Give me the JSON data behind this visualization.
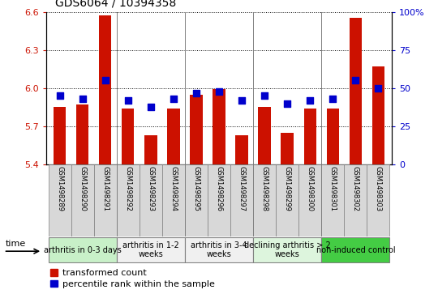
{
  "title": "GDS6064 / 10394358",
  "samples": [
    "GSM1498289",
    "GSM1498290",
    "GSM1498291",
    "GSM1498292",
    "GSM1498293",
    "GSM1498294",
    "GSM1498295",
    "GSM1498296",
    "GSM1498297",
    "GSM1498298",
    "GSM1498299",
    "GSM1498300",
    "GSM1498301",
    "GSM1498302",
    "GSM1498303"
  ],
  "red_values": [
    5.85,
    5.87,
    6.57,
    5.84,
    5.63,
    5.84,
    5.95,
    5.99,
    5.63,
    5.85,
    5.65,
    5.84,
    5.84,
    6.55,
    6.17
  ],
  "blue_pct": [
    45,
    43,
    55,
    42,
    38,
    43,
    47,
    48,
    42,
    45,
    40,
    42,
    43,
    55,
    50
  ],
  "ylim_left": [
    5.4,
    6.6
  ],
  "ylim_right": [
    0,
    100
  ],
  "yticks_left": [
    5.4,
    5.7,
    6.0,
    6.3,
    6.6
  ],
  "yticks_right": [
    0,
    25,
    50,
    75,
    100
  ],
  "groups": [
    {
      "label": "arthritis in 0-3 days",
      "start": 0,
      "end": 2,
      "color": "#c8f0c8"
    },
    {
      "label": "arthritis in 1-2\nweeks",
      "start": 3,
      "end": 5,
      "color": "#f0f0f0"
    },
    {
      "label": "arthritis in 3-4\nweeks",
      "start": 6,
      "end": 8,
      "color": "#f0f0f0"
    },
    {
      "label": "declining arthritis > 2\nweeks",
      "start": 9,
      "end": 11,
      "color": "#ddf5dd"
    },
    {
      "label": "non-induced control",
      "start": 12,
      "end": 14,
      "color": "#44cc44"
    }
  ],
  "group_boundaries": [
    2.5,
    5.5,
    8.5,
    11.5
  ],
  "bar_color": "#cc1100",
  "dot_color": "#0000cc",
  "left_color": "#cc1100",
  "right_color": "#0000cc",
  "bar_width": 0.55,
  "legend_red": "transformed count",
  "legend_blue": "percentile rank within the sample",
  "title_fontsize": 10,
  "tick_fontsize": 8,
  "sample_fontsize": 6,
  "group_fontsize": 7
}
